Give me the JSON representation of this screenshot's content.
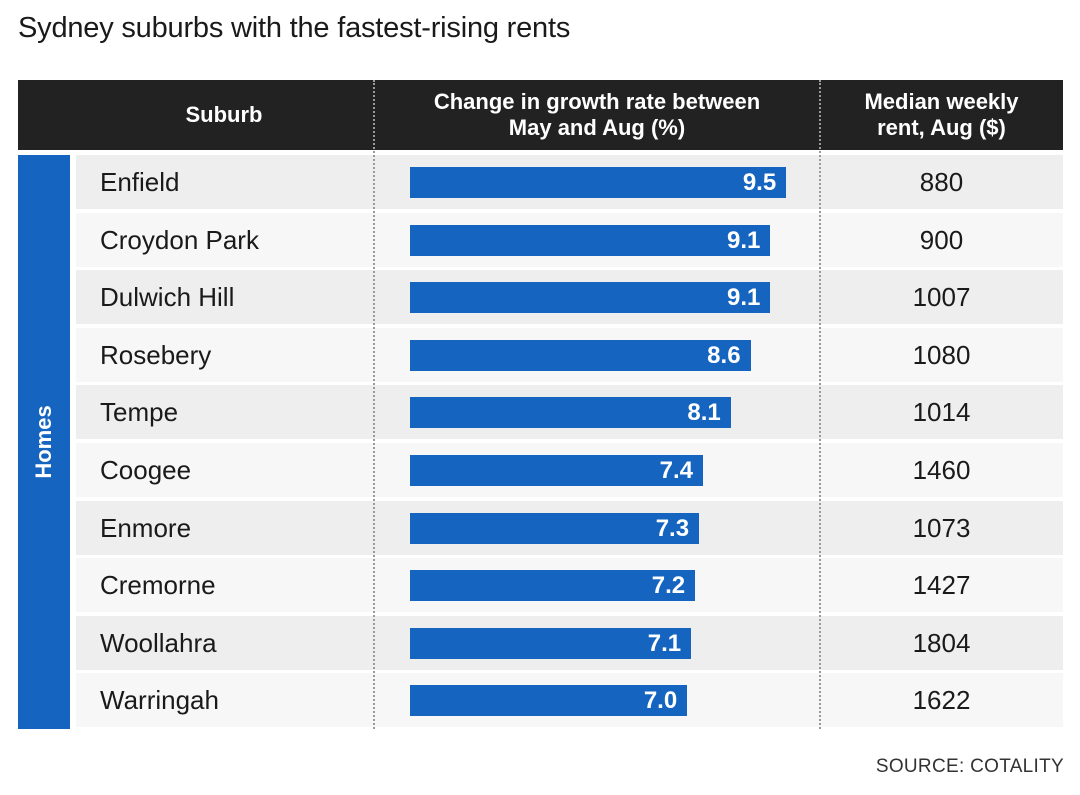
{
  "title": "Sydney suburbs with the fastest-rising rents",
  "headers": {
    "suburb": "Suburb",
    "growth_line1": "Change in growth rate between",
    "growth_line2": "May and Aug (%)",
    "rent_line1": "Median weekly",
    "rent_line2": "rent, Aug ($)"
  },
  "side_label": "Homes",
  "source": "SOURCE: COTALITY",
  "colors": {
    "bar": "#1565c0",
    "header": "#222222"
  },
  "chart_data": {
    "type": "bar",
    "orientation": "horizontal",
    "title": "Sydney suburbs with the fastest-rising rents",
    "xlabel": "Change in growth rate between May and Aug (%)",
    "xlim": [
      0,
      10
    ],
    "categories": [
      "Enfield",
      "Croydon Park",
      "Dulwich Hill",
      "Rosebery",
      "Tempe",
      "Coogee",
      "Enmore",
      "Cremorne",
      "Woollahra",
      "Warringah"
    ],
    "values": [
      9.5,
      9.1,
      9.1,
      8.6,
      8.1,
      7.4,
      7.3,
      7.2,
      7.1,
      7.0
    ],
    "value_labels": [
      "9.5",
      "9.1",
      "9.1",
      "8.6",
      "8.1",
      "7.4",
      "7.3",
      "7.2",
      "7.1",
      "7.0"
    ],
    "rents": [
      "880",
      "900",
      "1007",
      "1080",
      "1014",
      "1460",
      "1073",
      "1427",
      "1804",
      "1622"
    ]
  }
}
